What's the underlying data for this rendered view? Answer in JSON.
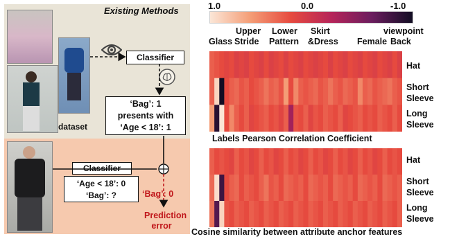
{
  "left": {
    "existing_methods": "Existing Methods",
    "classifier_top": "Classifier",
    "dataset_label": "dataset",
    "rule_line1": "‘Bag’: 1",
    "rule_line2": "presents with",
    "rule_line3": "‘Age < 18’: 1",
    "classifier_bottom": "Classifier",
    "pred_line1": "‘Age < 18’: 0",
    "pred_line2": "‘Bag’: ?",
    "bag_output": "‘Bag’: 0",
    "error_line1": "Prediction",
    "error_line2": "error",
    "colors": {
      "accent_red": "#c0171b",
      "panel_top": "#e9e4d7",
      "panel_bottom": "#f6c9ae"
    }
  },
  "right": {
    "colorbar_ticks": [
      "1.0",
      "0.0",
      "-1.0"
    ],
    "column_labels": [
      "Glass",
      "Upper Stride",
      "Lower Pattern",
      "Skirt &Dress",
      "Female",
      "viewpoint Back"
    ],
    "column_label_lines": {
      "upper": "Upper",
      "stride": "Stride",
      "lower": "Lower",
      "pattern": "Pattern",
      "skirt": "Skirt",
      "dress": "&Dress",
      "viewpoint": "viewpoint",
      "back": "Back"
    },
    "row_labels": {
      "hat": "Hat",
      "short1": "Short",
      "short2": "Sleeve",
      "long1": "Long",
      "long2": "Sleeve"
    },
    "caption_top": "Labels Pearson Correlation Coefficient",
    "caption_bottom": "Cosine similarity  between attribute anchor features",
    "heat_top": [
      [
        0.3,
        0.25,
        0.2,
        0.15,
        0.2,
        0.1,
        0.15,
        0.1,
        0.2,
        0.15,
        0.1,
        0.2,
        0.1,
        0.15,
        0.2,
        0.1,
        0.2,
        0.15,
        0.1,
        0.2,
        0.15,
        0.1,
        0.15,
        0.2,
        0.1,
        0.2,
        0.15,
        0.1,
        0.2,
        0.15,
        0.1,
        0.2,
        0.15,
        0.1,
        0.2,
        0.15,
        0.1,
        0.2,
        0.1
      ],
      [
        0.3,
        0.9,
        -1.0,
        0.2,
        0.3,
        0.35,
        0.25,
        0.3,
        0.2,
        0.25,
        0.3,
        0.4,
        0.3,
        0.35,
        0.25,
        0.6,
        0.2,
        0.5,
        0.3,
        0.25,
        0.3,
        0.35,
        0.25,
        0.3,
        0.4,
        0.3,
        0.25,
        0.35,
        0.3,
        0.25,
        0.5,
        0.3,
        0.35,
        0.25,
        0.3,
        0.35,
        0.4,
        0.3,
        0.25
      ],
      [
        0.6,
        -0.9,
        1.0,
        0.2,
        0.5,
        0.3,
        0.2,
        0.3,
        0.15,
        0.2,
        0.25,
        0.3,
        0.2,
        0.25,
        0.15,
        0.3,
        -0.3,
        0.25,
        0.2,
        0.3,
        0.15,
        0.25,
        0.2,
        0.3,
        0.25,
        0.2,
        0.3,
        0.15,
        0.2,
        0.25,
        0.3,
        0.2,
        0.25,
        0.2,
        0.3,
        0.25,
        0.2,
        0.3,
        0.2
      ]
    ],
    "heat_bottom": [
      [
        0.3,
        0.2,
        0.25,
        0.2,
        0.15,
        0.3,
        0.2,
        0.25,
        0.15,
        0.2,
        0.3,
        0.2,
        0.25,
        0.15,
        0.2,
        0.3,
        0.2,
        0.25,
        0.15,
        0.2,
        0.3,
        0.2,
        0.25,
        0.15,
        0.2,
        0.3,
        0.2,
        0.25,
        0.15,
        0.2,
        0.3,
        0.2,
        0.25,
        0.15,
        0.2,
        0.3,
        0.2,
        0.25,
        0.2
      ],
      [
        0.35,
        0.95,
        -0.8,
        0.2,
        0.3,
        0.35,
        0.2,
        0.3,
        0.25,
        0.2,
        0.3,
        0.4,
        0.25,
        0.3,
        0.2,
        0.35,
        0.3,
        0.25,
        0.3,
        0.2,
        0.35,
        0.3,
        0.25,
        0.3,
        0.2,
        0.35,
        0.3,
        0.25,
        0.3,
        0.2,
        0.35,
        0.3,
        0.25,
        0.3,
        0.2,
        0.35,
        0.3,
        0.25,
        0.3
      ],
      [
        0.4,
        -0.7,
        0.9,
        0.25,
        0.2,
        0.3,
        0.25,
        0.2,
        0.3,
        0.25,
        0.2,
        0.3,
        0.25,
        0.2,
        0.3,
        0.25,
        0.2,
        0.3,
        0.25,
        0.2,
        0.3,
        0.25,
        0.2,
        0.3,
        0.25,
        0.2,
        0.3,
        0.25,
        0.2,
        0.3,
        0.25,
        0.2,
        0.3,
        0.25,
        0.2,
        0.3,
        0.25,
        0.2,
        0.3
      ]
    ]
  }
}
